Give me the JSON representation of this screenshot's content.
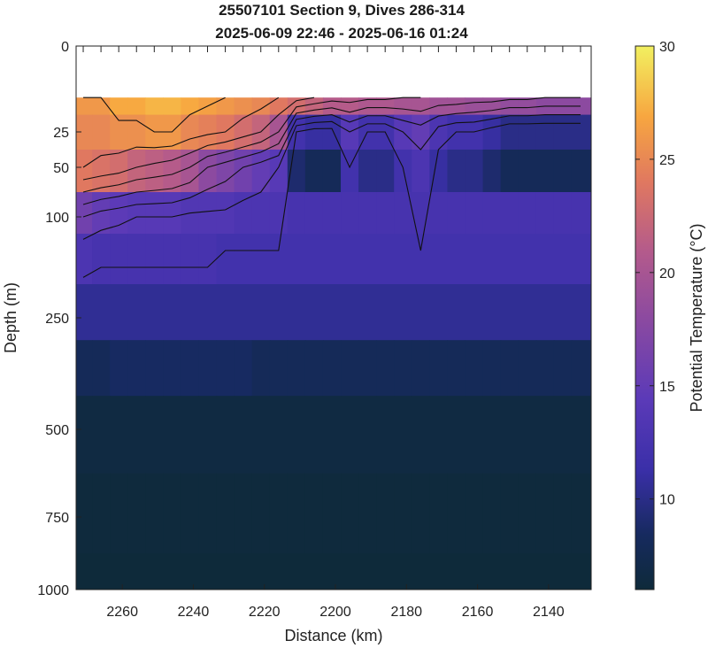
{
  "chart_data": {
    "type": "heatmap",
    "title": [
      "25507101 Section 9, Dives 286-314",
      "2025-06-09 22:46 - 2025-06-16 01:24"
    ],
    "xlabel": "Distance (km)",
    "ylabel": "Depth (m)",
    "colorbar_label": "Potential Temperature (°C)",
    "x_reversed": true,
    "xlim": [
      2273,
      2128
    ],
    "x_ticks": [
      2260,
      2240,
      2220,
      2200,
      2180,
      2160,
      2140
    ],
    "y_tick_labels": [
      "0",
      "25",
      "50",
      "100",
      "250",
      "500",
      "750",
      "1000"
    ],
    "color_range": [
      6,
      30
    ],
    "color_ticks": [
      10,
      15,
      20,
      25,
      30
    ],
    "dive_distances_km": [
      2271,
      2266,
      2261,
      2256,
      2251,
      2246,
      2241,
      2236,
      2231,
      2226,
      2221,
      2216,
      2211,
      2206,
      2201,
      2196,
      2191,
      2186,
      2181,
      2176,
      2171,
      2166,
      2161,
      2156,
      2151,
      2146,
      2141,
      2136,
      2131
    ],
    "depth_levels_m": [
      15,
      25,
      50,
      100,
      150,
      250,
      350,
      500,
      750,
      1000
    ],
    "temperature_profiles": [
      {
        "depth": 15,
        "values": [
          26,
          26,
          27,
          27,
          27.5,
          27.5,
          27,
          26.5,
          26,
          25.5,
          25,
          24,
          23,
          22,
          21,
          21,
          20.5,
          20.5,
          20,
          20,
          19.5,
          19.5,
          19,
          19,
          18.5,
          18.5,
          18,
          18,
          18
        ]
      },
      {
        "depth": 25,
        "values": [
          25,
          25,
          25.5,
          25.5,
          26,
          26,
          25,
          24.5,
          24,
          23,
          22,
          20,
          12,
          11,
          11,
          14,
          12,
          12,
          14,
          15,
          13,
          12,
          12,
          11,
          10,
          10,
          10,
          10,
          10
        ]
      },
      {
        "depth": 50,
        "values": [
          24,
          23.5,
          23,
          22,
          21.5,
          21,
          20,
          18,
          17,
          16,
          15,
          14,
          9,
          8,
          8,
          12,
          10,
          10,
          12,
          13,
          11,
          10,
          10,
          9,
          8,
          8,
          8,
          8,
          8
        ]
      },
      {
        "depth": 100,
        "values": [
          16,
          15,
          14.5,
          14,
          14,
          14,
          13.5,
          13.5,
          13.5,
          13,
          13,
          13,
          12.5,
          12.5,
          12.5,
          12.5,
          12.5,
          12.5,
          12.5,
          12.5,
          12.5,
          12.5,
          12.5,
          12.5,
          12.5,
          12.5,
          12.5,
          12.5,
          12.5
        ]
      },
      {
        "depth": 150,
        "values": [
          13,
          12.5,
          12.5,
          12.5,
          12.5,
          12.5,
          12.5,
          12.5,
          12,
          12,
          12,
          12,
          12,
          12,
          12,
          12,
          12,
          12,
          12,
          12,
          12,
          12,
          12,
          12,
          12,
          12,
          12,
          12,
          12
        ]
      },
      {
        "depth": 250,
        "values": [
          10.5,
          10.5,
          10.5,
          10.5,
          10.5,
          10.5,
          10.5,
          10.5,
          10.5,
          10.5,
          10.5,
          10.5,
          10.5,
          10.5,
          10.5,
          10.5,
          10.5,
          10.5,
          10.5,
          10.5,
          10.5,
          10.5,
          10.5,
          10.5,
          10.5,
          10.5,
          10.5,
          10.5,
          10.5
        ]
      },
      {
        "depth": 350,
        "values": [
          8,
          8,
          8.5,
          8.5,
          8.5,
          8.5,
          8.5,
          8.5,
          8.5,
          8.5,
          8,
          8,
          8,
          8,
          8,
          8,
          8,
          8,
          8,
          8,
          8,
          8,
          8,
          8,
          8,
          8,
          8,
          8,
          8
        ]
      },
      {
        "depth": 500,
        "values": [
          6.5,
          6.5,
          6.5,
          6.5,
          6.5,
          6.5,
          6.5,
          6.5,
          6.5,
          6.5,
          6.5,
          6.5,
          6.5,
          6.5,
          6.5,
          6.5,
          6.5,
          6.5,
          6.5,
          6.5,
          6.5,
          6.5,
          6.5,
          6.5,
          6.5,
          6.5,
          6.5,
          6.5,
          6.5
        ]
      },
      {
        "depth": 750,
        "values": [
          6.2,
          6.2,
          6.2,
          6.2,
          6.2,
          6.2,
          6.2,
          6.2,
          6.2,
          6.2,
          6.2,
          6.2,
          6.2,
          6.2,
          6.2,
          6.2,
          6.2,
          6.2,
          6.2,
          6.2,
          6.2,
          6.2,
          6.2,
          6.2,
          6.2,
          6.2,
          6.2,
          6.2,
          6.2
        ]
      },
      {
        "depth": 1000,
        "values": [
          6,
          6,
          6,
          6,
          6,
          6,
          6,
          6,
          6,
          6,
          6,
          6,
          6,
          6,
          6,
          6,
          6,
          6,
          6,
          6,
          6,
          6,
          6,
          6,
          6,
          6,
          6,
          6,
          6
        ]
      }
    ]
  }
}
